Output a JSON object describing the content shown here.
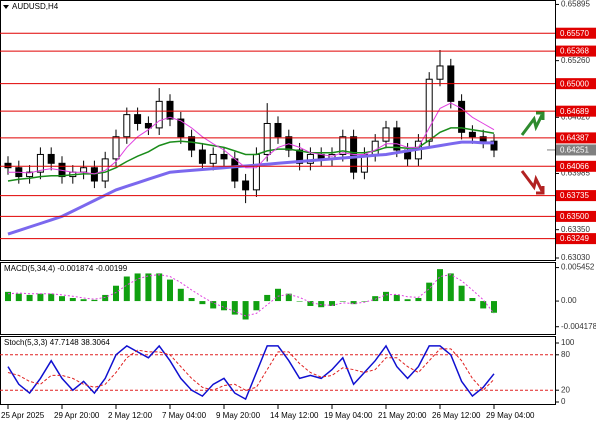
{
  "chart_data": [
    {
      "type": "candlestick",
      "title": "AUDUSD,H4",
      "categories": [
        "25 Apr 2025",
        null,
        null,
        null,
        null,
        "29 Apr 20:00",
        null,
        null,
        null,
        null,
        "2 May 12:00",
        null,
        null,
        null,
        null,
        "7 May 04:00",
        null,
        null,
        null,
        null,
        "9 May 20:00",
        null,
        null,
        null,
        null,
        "14 May 12:00",
        null,
        null,
        null,
        null,
        "19 May 04:00",
        null,
        null,
        null,
        null,
        "21 May 20:00",
        null,
        null,
        null,
        null,
        "26 May 12:00",
        null,
        null,
        null,
        null,
        "29 May 04:00"
      ],
      "open": [
        0.641,
        0.6405,
        0.6395,
        0.64,
        0.642,
        0.641,
        0.6395,
        0.64,
        0.6405,
        0.639,
        0.6415,
        0.644,
        0.6465,
        0.6455,
        0.645,
        0.648,
        0.646,
        0.644,
        0.6425,
        0.641,
        0.642,
        0.6415,
        0.639,
        0.638,
        0.642,
        0.6455,
        0.644,
        0.6425,
        0.641,
        0.642,
        0.6415,
        0.642,
        0.644,
        0.64,
        0.642,
        0.6435,
        0.645,
        0.6425,
        0.6415,
        0.6435,
        0.6505,
        0.652,
        0.648,
        0.6445,
        0.644,
        0.6435
      ],
      "high": [
        0.6418,
        0.6413,
        0.6408,
        0.6428,
        0.6428,
        0.6418,
        0.6408,
        0.6413,
        0.6413,
        0.6423,
        0.6448,
        0.6473,
        0.6473,
        0.6463,
        0.6495,
        0.6488,
        0.6468,
        0.6448,
        0.6433,
        0.6428,
        0.6428,
        0.6423,
        0.6398,
        0.6428,
        0.6478,
        0.6463,
        0.6448,
        0.6433,
        0.6428,
        0.6428,
        0.6428,
        0.6448,
        0.6448,
        0.6428,
        0.6443,
        0.6458,
        0.6458,
        0.6433,
        0.6443,
        0.6513,
        0.6538,
        0.6528,
        0.6488,
        0.6453,
        0.6448,
        0.6443
      ],
      "low": [
        0.6397,
        0.6387,
        0.6387,
        0.6392,
        0.6402,
        0.6387,
        0.6387,
        0.6392,
        0.6382,
        0.6382,
        0.6407,
        0.6432,
        0.6447,
        0.6442,
        0.6442,
        0.6452,
        0.6432,
        0.6417,
        0.6402,
        0.6402,
        0.6407,
        0.6382,
        0.6365,
        0.6372,
        0.6412,
        0.6432,
        0.6417,
        0.6402,
        0.6402,
        0.6407,
        0.6407,
        0.6412,
        0.6392,
        0.6392,
        0.6412,
        0.6427,
        0.6417,
        0.6407,
        0.6407,
        0.6427,
        0.6497,
        0.6472,
        0.6437,
        0.6432,
        0.6427,
        0.6417
      ],
      "close": [
        0.6405,
        0.6395,
        0.64,
        0.642,
        0.641,
        0.6395,
        0.64,
        0.6405,
        0.639,
        0.6415,
        0.644,
        0.6465,
        0.6455,
        0.645,
        0.648,
        0.646,
        0.644,
        0.6425,
        0.641,
        0.642,
        0.6415,
        0.639,
        0.638,
        0.642,
        0.6455,
        0.644,
        0.6425,
        0.641,
        0.642,
        0.6415,
        0.642,
        0.644,
        0.64,
        0.642,
        0.6435,
        0.645,
        0.6425,
        0.6415,
        0.6435,
        0.6505,
        0.652,
        0.648,
        0.6445,
        0.644,
        0.6435,
        0.6425
      ],
      "candle_color": "#000000",
      "series": [
        {
          "color": "#7b68ee",
          "width": 3,
          "values": [
            0.633,
            0.6334,
            0.6338,
            0.6342,
            0.6346,
            0.635,
            0.6356,
            0.6362,
            0.6368,
            0.6374,
            0.638,
            0.6384,
            0.6388,
            0.6392,
            0.6396,
            0.64,
            0.6401,
            0.6402,
            0.6403,
            0.6404,
            0.6405,
            0.6406,
            0.6407,
            0.6408,
            0.6409,
            0.641,
            0.6411,
            0.6412,
            0.6413,
            0.6414,
            0.6415,
            0.6416,
            0.6417,
            0.6418,
            0.6419,
            0.642,
            0.6422,
            0.6424,
            0.6426,
            0.6428,
            0.643,
            0.6432,
            0.6434,
            0.6434,
            0.6433,
            0.6433
          ]
        },
        {
          "color": "#1a8c1a",
          "width": 1.5,
          "values": [
            0.639,
            0.6392,
            0.6393,
            0.6395,
            0.6396,
            0.6396,
            0.6397,
            0.6398,
            0.6398,
            0.64,
            0.6405,
            0.6412,
            0.6418,
            0.6423,
            0.643,
            0.6434,
            0.6435,
            0.6434,
            0.6432,
            0.643,
            0.6428,
            0.6424,
            0.642,
            0.642,
            0.6424,
            0.6426,
            0.6426,
            0.6424,
            0.6422,
            0.6422,
            0.6422,
            0.6424,
            0.6422,
            0.6422,
            0.6424,
            0.6428,
            0.6428,
            0.6427,
            0.6428,
            0.6436,
            0.6445,
            0.645,
            0.645,
            0.6448,
            0.6446,
            0.6444
          ]
        },
        {
          "color": "#e040e0",
          "width": 1,
          "values": [
            0.64,
            0.64,
            0.6399,
            0.6402,
            0.6404,
            0.6402,
            0.64,
            0.64,
            0.6398,
            0.6402,
            0.6412,
            0.6428,
            0.644,
            0.6448,
            0.6458,
            0.6462,
            0.6458,
            0.645,
            0.644,
            0.6432,
            0.6425,
            0.6415,
            0.6405,
            0.6405,
            0.6418,
            0.6428,
            0.6432,
            0.6428,
            0.6422,
            0.642,
            0.6418,
            0.6422,
            0.642,
            0.642,
            0.6425,
            0.6432,
            0.6432,
            0.6428,
            0.6428,
            0.645,
            0.6472,
            0.6478,
            0.6472,
            0.6462,
            0.6455,
            0.6448
          ]
        }
      ],
      "ylim": [
        0.6303,
        0.659
      ],
      "yticks": [
        0.65895,
        {
          "value": 0.6526,
          "label": "0.65260"
        },
        {
          "value": 0.6462,
          "label": "0.64620"
        },
        0.63985,
        {
          "value": 0.6335,
          "label": "0.63350"
        },
        {
          "value": 0.6303,
          "label": "0.63030"
        }
      ],
      "levels": [
        {
          "value": 0.6557,
          "label": "0.65570"
        },
        {
          "value": 0.65368,
          "label": "0.65368"
        },
        {
          "value": 0.65,
          "label": "0.65000"
        },
        {
          "value": 0.64689,
          "label": "0.64689"
        },
        {
          "value": 0.64387,
          "label": "0.64387"
        },
        {
          "value": 0.64066,
          "label": "0.64066"
        },
        {
          "value": 0.63735,
          "label": "0.63735"
        },
        {
          "value": 0.635,
          "label": "0.63500"
        },
        {
          "value": 0.63249,
          "label": "0.63249"
        }
      ],
      "level_color": "#e00000",
      "last_price": {
        "value": 0.64251,
        "label": "0.64251"
      }
    },
    {
      "type": "macd",
      "title": "MACD(5,34,4) -0.001874 -0.00199",
      "color": "#10a010",
      "values": [
        0.0015,
        0.0012,
        0.001,
        0.0012,
        0.0012,
        0.0008,
        0.0005,
        0.0003,
        0.0002,
        0.001,
        0.0025,
        0.004,
        0.0045,
        0.0045,
        0.0045,
        0.0035,
        0.002,
        0.0005,
        -0.0005,
        -0.0012,
        -0.0015,
        -0.0022,
        -0.003,
        -0.0015,
        0.001,
        0.002,
        0.0012,
        0.0,
        -0.0008,
        -0.001,
        -0.0008,
        0.0,
        -0.0005,
        0.0,
        0.0008,
        0.0015,
        0.001,
        0.0003,
        0.0005,
        0.003,
        0.0052,
        0.0045,
        0.0025,
        0.0005,
        -0.0012,
        -0.0019
      ],
      "signal": {
        "color": "#e040e0",
        "values": [
          0.0012,
          0.0013,
          0.0012,
          0.0012,
          0.0012,
          0.001,
          0.0008,
          0.0005,
          0.0003,
          0.0006,
          0.0014,
          0.0026,
          0.0036,
          0.0041,
          0.0043,
          0.004,
          0.003,
          0.0018,
          0.0007,
          -0.0003,
          -0.001,
          -0.0017,
          -0.0024,
          -0.002,
          -0.0006,
          0.0008,
          0.0011,
          0.0006,
          -0.0002,
          -0.0006,
          -0.0007,
          -0.0003,
          -0.0004,
          -0.0002,
          0.0003,
          0.001,
          0.0011,
          0.0007,
          0.0006,
          0.002,
          0.004,
          0.0043,
          0.0033,
          0.0018,
          0.0002,
          -0.002
        ]
      },
      "ylim": [
        -0.0052,
        0.0062
      ],
      "yticks": [
        0.005452,
        {
          "value": 0,
          "label": "0.00"
        },
        -0.004178
      ]
    },
    {
      "type": "stoch",
      "title": "Stoch(5,3,3) 47.7148 38.3064",
      "series": [
        {
          "color": "#1010d0",
          "dashed": false,
          "values": [
            60,
            30,
            15,
            40,
            70,
            40,
            20,
            35,
            15,
            40,
            80,
            95,
            85,
            75,
            95,
            70,
            40,
            20,
            10,
            30,
            40,
            15,
            5,
            50,
            95,
            95,
            70,
            40,
            45,
            40,
            55,
            75,
            30,
            50,
            70,
            95,
            60,
            40,
            60,
            95,
            95,
            80,
            35,
            10,
            25,
            47.7148
          ]
        },
        {
          "color": "#e02020",
          "dashed": true,
          "values": [
            50,
            45,
            35,
            30,
            45,
            45,
            40,
            30,
            25,
            30,
            50,
            75,
            88,
            85,
            85,
            80,
            60,
            40,
            25,
            20,
            28,
            30,
            20,
            25,
            55,
            85,
            85,
            65,
            50,
            42,
            45,
            58,
            55,
            50,
            55,
            75,
            75,
            60,
            50,
            70,
            90,
            90,
            70,
            40,
            20,
            38.3064
          ]
        }
      ],
      "ylim": [
        0,
        100
      ],
      "yticks": [
        100,
        80,
        20,
        0
      ],
      "tick_line_color": "#e02020"
    }
  ]
}
